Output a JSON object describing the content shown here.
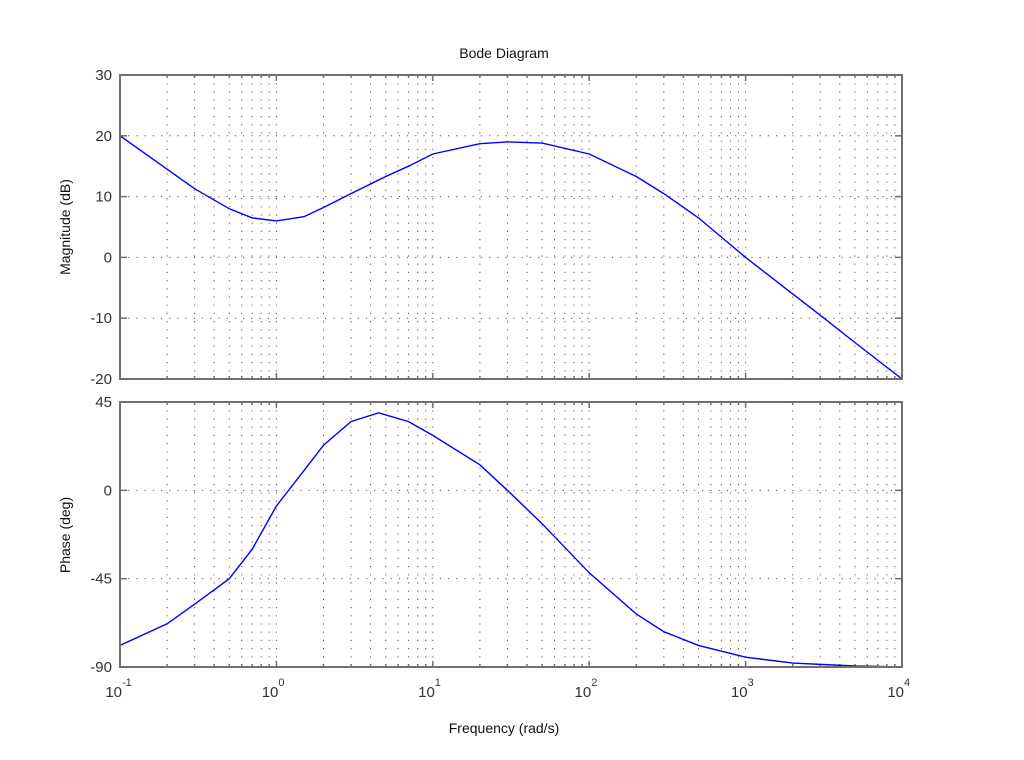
{
  "chart_data": [
    {
      "type": "line",
      "panel": "magnitude",
      "title": "Bode Diagram",
      "xlabel": "",
      "ylabel": "Magnitude (dB)",
      "xscale": "log",
      "xlim": [
        0.1,
        10000
      ],
      "ylim": [
        -20,
        30
      ],
      "yticks": [
        -20,
        -10,
        0,
        10,
        20,
        30
      ],
      "grid": true,
      "series": [
        {
          "name": "magnitude",
          "color": "#0000ff",
          "x": [
            0.1,
            0.2,
            0.3,
            0.5,
            0.7,
            1,
            1.5,
            2,
            3,
            5,
            7,
            10,
            20,
            30,
            50,
            100,
            200,
            300,
            500,
            1000,
            2000,
            3000,
            5000,
            10000
          ],
          "y": [
            20,
            14.5,
            11.3,
            8,
            6.5,
            6,
            6.7,
            8.2,
            10.5,
            13.3,
            15,
            17,
            18.7,
            19,
            18.8,
            17,
            13.3,
            10.5,
            6.5,
            0,
            -6,
            -9.5,
            -14,
            -20
          ]
        }
      ]
    },
    {
      "type": "line",
      "panel": "phase",
      "title": "",
      "xlabel": "Frequency (rad/s)",
      "ylabel": "Phase (deg)",
      "xscale": "log",
      "xlim": [
        0.1,
        10000
      ],
      "ylim": [
        -90,
        45
      ],
      "yticks": [
        -90,
        -45,
        0,
        45
      ],
      "xticks": [
        "10^-1",
        "10^0",
        "10^1",
        "10^2",
        "10^3",
        "10^4"
      ],
      "grid": true,
      "series": [
        {
          "name": "phase",
          "color": "#0000ff",
          "x": [
            0.1,
            0.2,
            0.3,
            0.5,
            0.7,
            1,
            1.5,
            2,
            3,
            4.5,
            7,
            10,
            20,
            30,
            50,
            100,
            200,
            300,
            500,
            1000,
            2000,
            5000,
            10000
          ],
          "y": [
            -79,
            -68,
            -58,
            -45,
            -30,
            -8,
            10,
            23,
            35,
            39.5,
            35,
            28,
            13,
            0,
            -17,
            -42,
            -63,
            -72,
            -79,
            -85,
            -88,
            -89.5,
            -90
          ]
        }
      ]
    }
  ],
  "figure": {
    "title": "Bode Diagram",
    "xlabel": "Frequency (rad/s)",
    "mag_ylabel": "Magnitude (dB)",
    "phase_ylabel": "Phase (deg)",
    "x_tick_bases": [
      "10",
      "10",
      "10",
      "10",
      "10",
      "10"
    ],
    "x_tick_exponents": [
      "-1",
      "0",
      "1",
      "2",
      "3",
      "4"
    ],
    "mag_tick_labels": [
      "30",
      "20",
      "10",
      "0",
      "-10",
      "-20"
    ],
    "phase_tick_labels": [
      "45",
      "0",
      "-45",
      "-90"
    ],
    "line_color": "#0000ff",
    "axis_color": "#707070",
    "grid_color": "#555555"
  }
}
